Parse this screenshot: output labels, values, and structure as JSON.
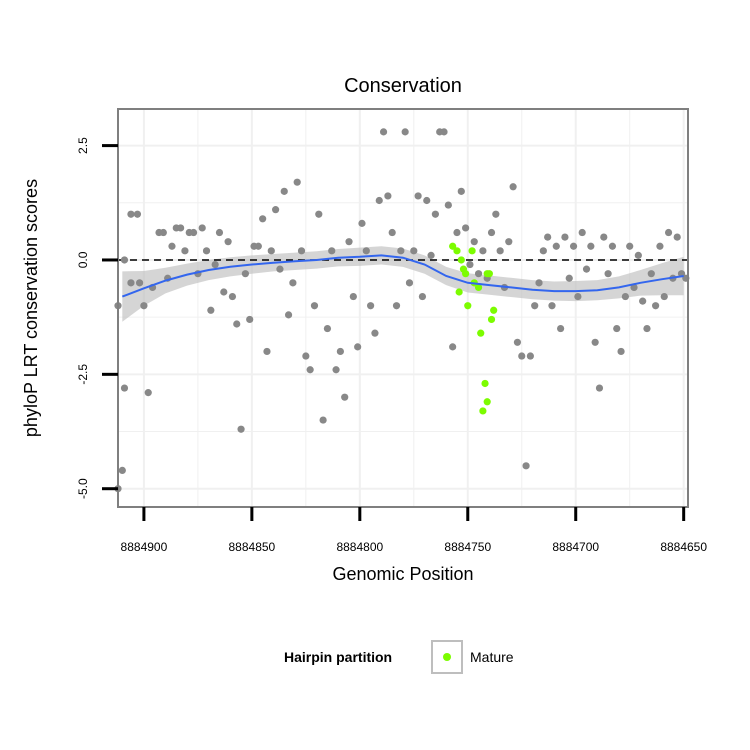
{
  "chart_data": {
    "type": "scatter",
    "title": "Conservation",
    "xlabel": "Genomic Position",
    "ylabel": "phyloP LRT conservation scores",
    "x_reversed": true,
    "xlim": [
      8884912,
      8884648
    ],
    "ylim": [
      -5.4,
      3.3
    ],
    "x_ticks": [
      8884900,
      8884850,
      8884800,
      8884750,
      8884700,
      8884650
    ],
    "x_tick_labels": [
      "8884900",
      "8884850",
      "8884800",
      "8884750",
      "8884700",
      "8884650"
    ],
    "y_ticks": [
      2.5,
      0.0,
      -2.5,
      -5.0
    ],
    "y_tick_labels": [
      "2.5",
      "0.0",
      "-2.5",
      "-5.0"
    ],
    "reference_line_y": 0,
    "grid": true,
    "legend": {
      "title": "Hairpin partition",
      "position": "bottom",
      "entries": [
        "Mature"
      ]
    },
    "colors": {
      "other": "#888888",
      "mature": "#7cfc00",
      "smooth": "#3366ee",
      "band": "#bebebe",
      "panel_bg": "#ffffff",
      "panel_border": "#7f7f7f",
      "grid": "#f0f0f0"
    },
    "smooth": {
      "x": [
        8884910,
        8884900,
        8884890,
        8884880,
        8884870,
        8884860,
        8884850,
        8884840,
        8884830,
        8884820,
        8884810,
        8884800,
        8884790,
        8884780,
        8884770,
        8884760,
        8884750,
        8884740,
        8884730,
        8884720,
        8884710,
        8884700,
        8884690,
        8884680,
        8884670,
        8884660,
        8884650
      ],
      "y": [
        -0.8,
        -0.62,
        -0.45,
        -0.32,
        -0.22,
        -0.15,
        -0.1,
        -0.06,
        -0.03,
        0.0,
        0.05,
        0.07,
        0.1,
        0.05,
        -0.1,
        -0.35,
        -0.5,
        -0.55,
        -0.6,
        -0.65,
        -0.68,
        -0.68,
        -0.66,
        -0.6,
        -0.5,
        -0.42,
        -0.35
      ],
      "se": [
        0.55,
        0.38,
        0.28,
        0.24,
        0.22,
        0.21,
        0.2,
        0.19,
        0.19,
        0.19,
        0.19,
        0.2,
        0.2,
        0.2,
        0.2,
        0.2,
        0.21,
        0.21,
        0.21,
        0.21,
        0.21,
        0.22,
        0.22,
        0.24,
        0.28,
        0.35,
        0.42
      ]
    },
    "series": [
      {
        "name": "other",
        "points": [
          [
            8884912,
            -5.0
          ],
          [
            8884910,
            -4.6
          ],
          [
            8884909,
            -2.8
          ],
          [
            8884906,
            1.0
          ],
          [
            8884903,
            1.0
          ],
          [
            8884912,
            -1.0
          ],
          [
            8884909,
            0.0
          ],
          [
            8884906,
            -0.5
          ],
          [
            8884902,
            -0.5
          ],
          [
            8884900,
            -1.0
          ],
          [
            8884898,
            -2.9
          ],
          [
            8884896,
            -0.6
          ],
          [
            8884893,
            0.6
          ],
          [
            8884891,
            0.6
          ],
          [
            8884889,
            -0.4
          ],
          [
            8884887,
            0.3
          ],
          [
            8884885,
            0.7
          ],
          [
            8884883,
            0.7
          ],
          [
            8884881,
            0.2
          ],
          [
            8884879,
            0.6
          ],
          [
            8884877,
            0.6
          ],
          [
            8884875,
            -0.3
          ],
          [
            8884873,
            0.7
          ],
          [
            8884871,
            0.2
          ],
          [
            8884869,
            -1.1
          ],
          [
            8884867,
            -0.1
          ],
          [
            8884865,
            0.6
          ],
          [
            8884863,
            -0.7
          ],
          [
            8884861,
            0.4
          ],
          [
            8884859,
            -0.8
          ],
          [
            8884857,
            -1.4
          ],
          [
            8884855,
            -3.7
          ],
          [
            8884853,
            -0.3
          ],
          [
            8884851,
            -1.3
          ],
          [
            8884849,
            0.3
          ],
          [
            8884847,
            0.3
          ],
          [
            8884845,
            0.9
          ],
          [
            8884843,
            -2.0
          ],
          [
            8884841,
            0.2
          ],
          [
            8884839,
            1.1
          ],
          [
            8884837,
            -0.2
          ],
          [
            8884835,
            1.5
          ],
          [
            8884833,
            -1.2
          ],
          [
            8884831,
            -0.5
          ],
          [
            8884829,
            1.7
          ],
          [
            8884827,
            0.2
          ],
          [
            8884825,
            -2.1
          ],
          [
            8884823,
            -2.4
          ],
          [
            8884821,
            -1.0
          ],
          [
            8884819,
            1.0
          ],
          [
            8884817,
            -3.5
          ],
          [
            8884815,
            -1.5
          ],
          [
            8884813,
            0.2
          ],
          [
            8884811,
            -2.4
          ],
          [
            8884809,
            -2.0
          ],
          [
            8884807,
            -3.0
          ],
          [
            8884805,
            0.4
          ],
          [
            8884803,
            -0.8
          ],
          [
            8884801,
            -1.9
          ],
          [
            8884799,
            0.8
          ],
          [
            8884797,
            0.2
          ],
          [
            8884795,
            -1.0
          ],
          [
            8884793,
            -1.6
          ],
          [
            8884791,
            1.3
          ],
          [
            8884789,
            2.8
          ],
          [
            8884787,
            1.4
          ],
          [
            8884785,
            0.6
          ],
          [
            8884783,
            -1.0
          ],
          [
            8884781,
            0.2
          ],
          [
            8884779,
            2.8
          ],
          [
            8884777,
            -0.5
          ],
          [
            8884775,
            0.2
          ],
          [
            8884773,
            1.4
          ],
          [
            8884771,
            -0.8
          ],
          [
            8884769,
            1.3
          ],
          [
            8884767,
            0.1
          ],
          [
            8884765,
            1.0
          ],
          [
            8884763,
            2.8
          ],
          [
            8884761,
            2.8
          ],
          [
            8884759,
            1.2
          ],
          [
            8884757,
            -1.9
          ],
          [
            8884755,
            0.6
          ],
          [
            8884753,
            1.5
          ],
          [
            8884751,
            0.7
          ],
          [
            8884749,
            -0.1
          ],
          [
            8884747,
            0.4
          ],
          [
            8884745,
            -0.3
          ],
          [
            8884743,
            0.2
          ],
          [
            8884741,
            -0.4
          ],
          [
            8884739,
            0.6
          ],
          [
            8884737,
            1.0
          ],
          [
            8884735,
            0.2
          ],
          [
            8884733,
            -0.6
          ],
          [
            8884731,
            0.4
          ],
          [
            8884729,
            1.6
          ],
          [
            8884727,
            -1.8
          ],
          [
            8884725,
            -2.1
          ],
          [
            8884723,
            -4.5
          ],
          [
            8884721,
            -2.1
          ],
          [
            8884719,
            -1.0
          ],
          [
            8884717,
            -0.5
          ],
          [
            8884715,
            0.2
          ],
          [
            8884713,
            0.5
          ],
          [
            8884711,
            -1.0
          ],
          [
            8884709,
            0.3
          ],
          [
            8884707,
            -1.5
          ],
          [
            8884705,
            0.5
          ],
          [
            8884703,
            -0.4
          ],
          [
            8884701,
            0.3
          ],
          [
            8884699,
            -0.8
          ],
          [
            8884697,
            0.6
          ],
          [
            8884695,
            -0.2
          ],
          [
            8884693,
            0.3
          ],
          [
            8884691,
            -1.8
          ],
          [
            8884689,
            -2.8
          ],
          [
            8884687,
            0.5
          ],
          [
            8884685,
            -0.3
          ],
          [
            8884683,
            0.3
          ],
          [
            8884681,
            -1.5
          ],
          [
            8884679,
            -2.0
          ],
          [
            8884677,
            -0.8
          ],
          [
            8884675,
            0.3
          ],
          [
            8884673,
            -0.6
          ],
          [
            8884671,
            0.1
          ],
          [
            8884669,
            -0.9
          ],
          [
            8884667,
            -1.5
          ],
          [
            8884665,
            -0.3
          ],
          [
            8884663,
            -1.0
          ],
          [
            8884661,
            0.3
          ],
          [
            8884659,
            -0.8
          ],
          [
            8884657,
            0.6
          ],
          [
            8884655,
            -0.4
          ],
          [
            8884653,
            0.5
          ],
          [
            8884651,
            -0.3
          ],
          [
            8884649,
            -0.4
          ]
        ]
      },
      {
        "name": "Mature",
        "points": [
          [
            8884757,
            0.3
          ],
          [
            8884755,
            0.2
          ],
          [
            8884754,
            -0.7
          ],
          [
            8884753,
            0.0
          ],
          [
            8884752,
            -0.2
          ],
          [
            8884751,
            -0.3
          ],
          [
            8884750,
            -1.0
          ],
          [
            8884748,
            0.2
          ],
          [
            8884747,
            -0.5
          ],
          [
            8884745,
            -0.6
          ],
          [
            8884744,
            -1.6
          ],
          [
            8884743,
            -3.3
          ],
          [
            8884742,
            -2.7
          ],
          [
            8884741,
            -3.1
          ],
          [
            8884740,
            -0.3
          ],
          [
            8884739,
            -1.3
          ],
          [
            8884738,
            -1.1
          ],
          [
            8884741,
            -0.3
          ]
        ]
      }
    ]
  }
}
